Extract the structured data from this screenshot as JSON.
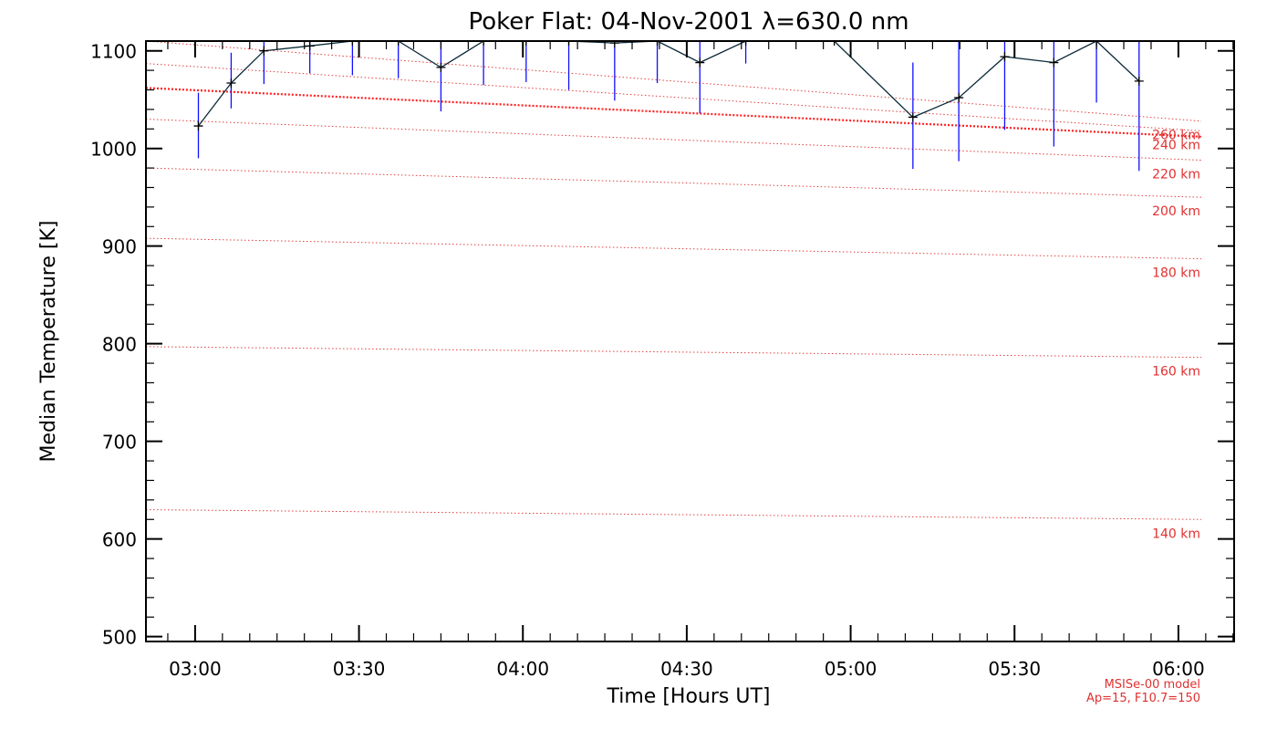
{
  "chart_data": {
    "type": "line",
    "title": "Poker Flat: 04-Nov-2001 λ=630.0 nm",
    "xlabel": "Time [Hours UT]",
    "ylabel": "Median Temperature [K]",
    "xlim_hours": [
      2.85,
      6.17
    ],
    "ylim": [
      495,
      1110
    ],
    "xticks": [
      {
        "hours": 3.0,
        "label": "03:00"
      },
      {
        "hours": 3.5,
        "label": "03:30"
      },
      {
        "hours": 4.0,
        "label": "04:00"
      },
      {
        "hours": 4.5,
        "label": "04:30"
      },
      {
        "hours": 5.0,
        "label": "05:00"
      },
      {
        "hours": 5.5,
        "label": "05:30"
      },
      {
        "hours": 6.0,
        "label": "06:00"
      }
    ],
    "yticks": [
      {
        "value": 500,
        "label": "500"
      },
      {
        "value": 600,
        "label": "600"
      },
      {
        "value": 700,
        "label": "700"
      },
      {
        "value": 800,
        "label": "800"
      },
      {
        "value": 900,
        "label": "900"
      },
      {
        "value": 1000,
        "label": "1000"
      },
      {
        "value": 1100,
        "label": "1100"
      }
    ],
    "grid": false,
    "measurements": {
      "color": "#0a2a3a",
      "error_color": "#1010ff",
      "points": [
        {
          "t": 3.01,
          "y": 1023,
          "lo": 990,
          "hi": 1057
        },
        {
          "t": 3.11,
          "y": 1067,
          "lo": 1041,
          "hi": 1098
        },
        {
          "t": 3.21,
          "y": 1100,
          "lo": 1066,
          "hi": 1110
        },
        {
          "t": 3.35,
          "y": 1105,
          "lo": 1077,
          "hi": 1110
        },
        {
          "t": 3.48,
          "y": 1110,
          "lo": 1075,
          "hi": 1110
        },
        {
          "t": 3.62,
          "y": 1110,
          "lo": 1072,
          "hi": 1110
        },
        {
          "t": 3.75,
          "y": 1083,
          "lo": 1038,
          "hi": 1110
        },
        {
          "t": 3.88,
          "y": 1110,
          "lo": 1065,
          "hi": 1110
        },
        {
          "t": 4.01,
          "y": 1110,
          "lo": 1068,
          "hi": 1110
        },
        {
          "t": 4.14,
          "y": 1110,
          "lo": 1060,
          "hi": 1110
        },
        {
          "t": 4.28,
          "y": 1108,
          "lo": 1049,
          "hi": 1110
        },
        {
          "t": 4.41,
          "y": 1110,
          "lo": 1067,
          "hi": 1110
        },
        {
          "t": 4.54,
          "y": 1088,
          "lo": 1036,
          "hi": 1110
        },
        {
          "t": 4.68,
          "y": 1110,
          "lo": 1087,
          "hi": 1110
        },
        {
          "t": 4.95,
          "y": 1110,
          "lo": 1110,
          "hi": 1110
        },
        {
          "t": 5.19,
          "y": 1032,
          "lo": 979,
          "hi": 1088
        },
        {
          "t": 5.33,
          "y": 1052,
          "lo": 987,
          "hi": 1110
        },
        {
          "t": 5.47,
          "y": 1094,
          "lo": 1019,
          "hi": 1110
        },
        {
          "t": 5.62,
          "y": 1088,
          "lo": 1002,
          "hi": 1110
        },
        {
          "t": 5.75,
          "y": 1110,
          "lo": 1047,
          "hi": 1110
        },
        {
          "t": 5.88,
          "y": 1069,
          "lo": 977,
          "hi": 1110
        }
      ]
    },
    "model_curve": {
      "color": "#ff2020",
      "start": {
        "t": 2.85,
        "y": 1062
      },
      "end": {
        "t": 6.07,
        "y": 1012
      }
    },
    "altitude_lines": [
      {
        "label": "140 km",
        "start": {
          "t": 2.85,
          "y": 630
        },
        "end": {
          "t": 6.07,
          "y": 620
        }
      },
      {
        "label": "160 km",
        "start": {
          "t": 2.85,
          "y": 797
        },
        "end": {
          "t": 6.07,
          "y": 786
        }
      },
      {
        "label": "180 km",
        "start": {
          "t": 2.85,
          "y": 908
        },
        "end": {
          "t": 6.07,
          "y": 887
        }
      },
      {
        "label": "200 km",
        "start": {
          "t": 2.85,
          "y": 980
        },
        "end": {
          "t": 6.07,
          "y": 950
        }
      },
      {
        "label": "220 km",
        "start": {
          "t": 2.85,
          "y": 1030
        },
        "end": {
          "t": 6.07,
          "y": 988
        }
      },
      {
        "label": "240 km",
        "start": {
          "t": 2.85,
          "y": 1087
        },
        "end": {
          "t": 6.07,
          "y": 1018
        }
      },
      {
        "label": "260 km",
        "start": {
          "t": 2.85,
          "y": 1110
        },
        "end": {
          "t": 6.07,
          "y": 1028
        }
      }
    ],
    "model_note": [
      "MSISe-00 model",
      "Ap=15, F10.7=150"
    ]
  }
}
